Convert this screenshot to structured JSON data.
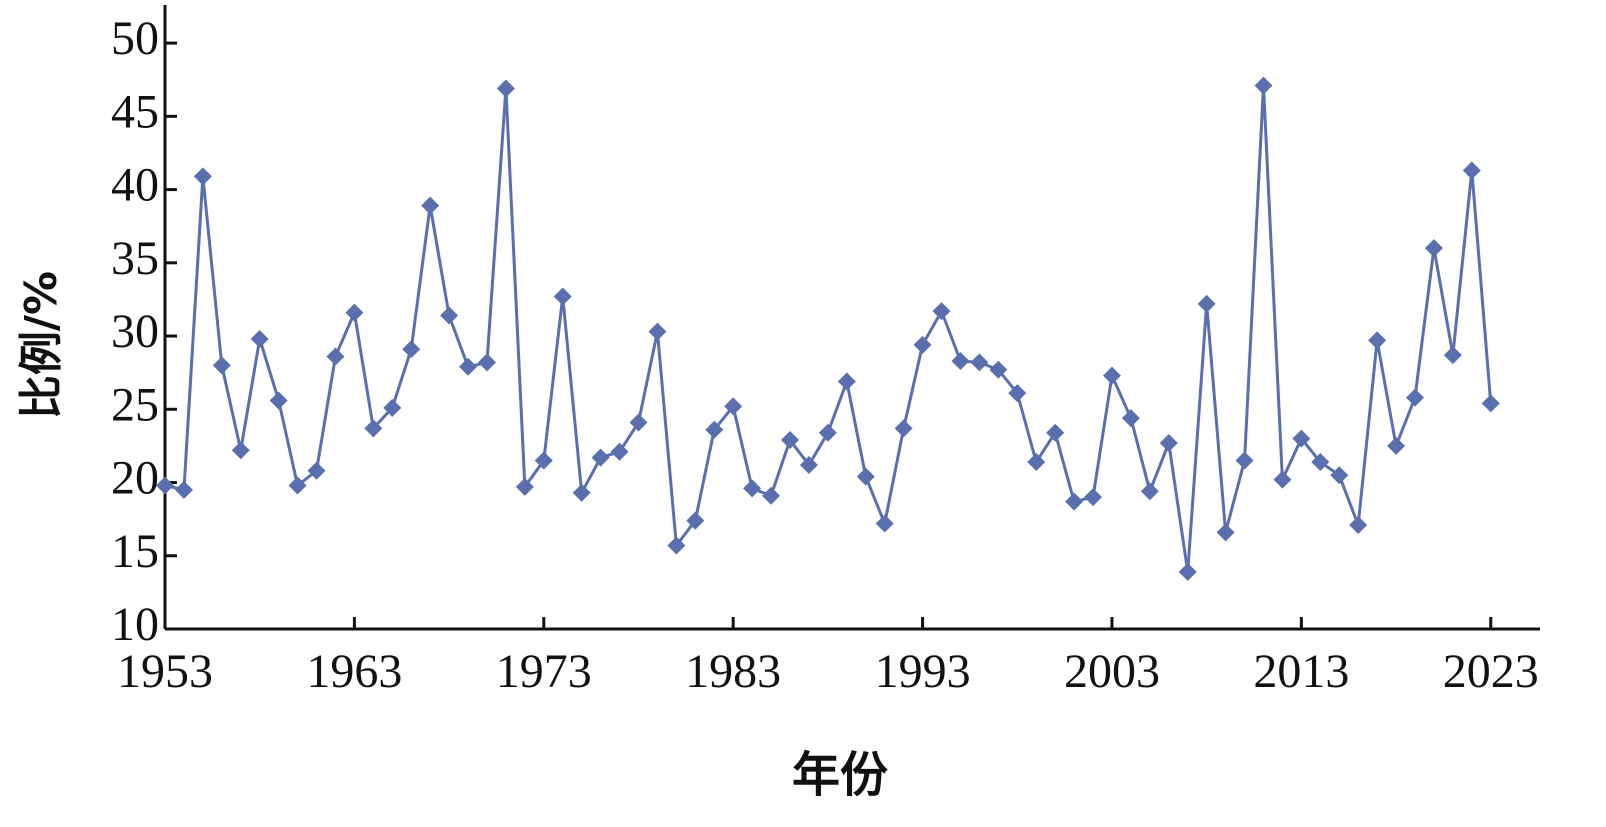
{
  "chart_data": {
    "type": "line",
    "x_label": "年份",
    "y_label": "比例/%",
    "x": [
      1953,
      1954,
      1955,
      1956,
      1957,
      1958,
      1959,
      1960,
      1961,
      1962,
      1963,
      1964,
      1965,
      1966,
      1967,
      1968,
      1969,
      1970,
      1971,
      1972,
      1973,
      1974,
      1975,
      1976,
      1977,
      1978,
      1979,
      1980,
      1981,
      1982,
      1983,
      1984,
      1985,
      1986,
      1987,
      1988,
      1989,
      1990,
      1991,
      1992,
      1993,
      1994,
      1995,
      1996,
      1997,
      1998,
      1999,
      2000,
      2001,
      2002,
      2003,
      2004,
      2005,
      2006,
      2007,
      2008,
      2009,
      2010,
      2011,
      2012,
      2013,
      2014,
      2015,
      2016,
      2017,
      2018,
      2019,
      2020,
      2021,
      2022,
      2023
    ],
    "values": [
      19.8,
      19.5,
      40.9,
      28.0,
      22.2,
      29.8,
      25.6,
      19.8,
      20.8,
      28.6,
      31.6,
      23.7,
      25.1,
      29.1,
      38.9,
      31.4,
      27.9,
      28.2,
      46.9,
      19.7,
      21.5,
      32.7,
      19.3,
      21.7,
      22.1,
      24.1,
      30.3,
      15.7,
      17.4,
      23.6,
      25.2,
      19.6,
      19.1,
      22.9,
      21.2,
      23.4,
      26.9,
      20.4,
      17.2,
      23.7,
      29.4,
      31.7,
      28.3,
      28.2,
      27.7,
      26.1,
      21.4,
      23.4,
      18.7,
      19.0,
      27.3,
      24.4,
      19.4,
      22.7,
      13.9,
      32.2,
      16.6,
      21.5,
      47.1,
      20.2,
      23.0,
      21.4,
      20.5,
      17.1,
      29.7,
      22.5,
      25.8,
      36.0,
      28.7,
      41.3,
      25.4
    ],
    "color": "#5a6fae",
    "xlim": [
      1953,
      2025.6
    ],
    "xticks": [
      1953,
      1963,
      1973,
      1983,
      1993,
      2003,
      2013,
      2023
    ],
    "ylim": [
      10,
      52.6
    ],
    "yticks": [
      10,
      15,
      20,
      25,
      30,
      35,
      40,
      45,
      50
    ],
    "grid": false
  }
}
